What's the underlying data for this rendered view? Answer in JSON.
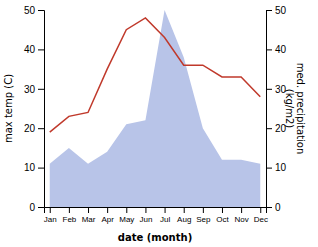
{
  "chart_data": {
    "type": "line",
    "categories": [
      "Jan",
      "Feb",
      "Mar",
      "Apr",
      "May",
      "Jun",
      "Jul",
      "Aug",
      "Sep",
      "Oct",
      "Nov",
      "Dec"
    ],
    "xlabel": "date (month)",
    "ylabel": "max temp (C)",
    "y2label": "med. precipitation\n(kg/m2)",
    "series": [
      {
        "type": "area",
        "axis": "y2",
        "color": "#b8c4e8",
        "values": [
          11,
          15,
          11,
          14,
          21,
          22,
          50,
          38,
          20,
          12,
          12,
          11
        ]
      },
      {
        "type": "line",
        "color": "#c0392b",
        "values": [
          19,
          23,
          24,
          35,
          45,
          48,
          43,
          36,
          36,
          33,
          33,
          28
        ]
      }
    ],
    "ylim": [
      0,
      50
    ],
    "yticks": [
      0,
      10,
      20,
      30,
      40,
      50
    ],
    "y2lim": [
      0,
      50
    ],
    "y2ticks": [
      0,
      10,
      20,
      30,
      40,
      50
    ]
  }
}
